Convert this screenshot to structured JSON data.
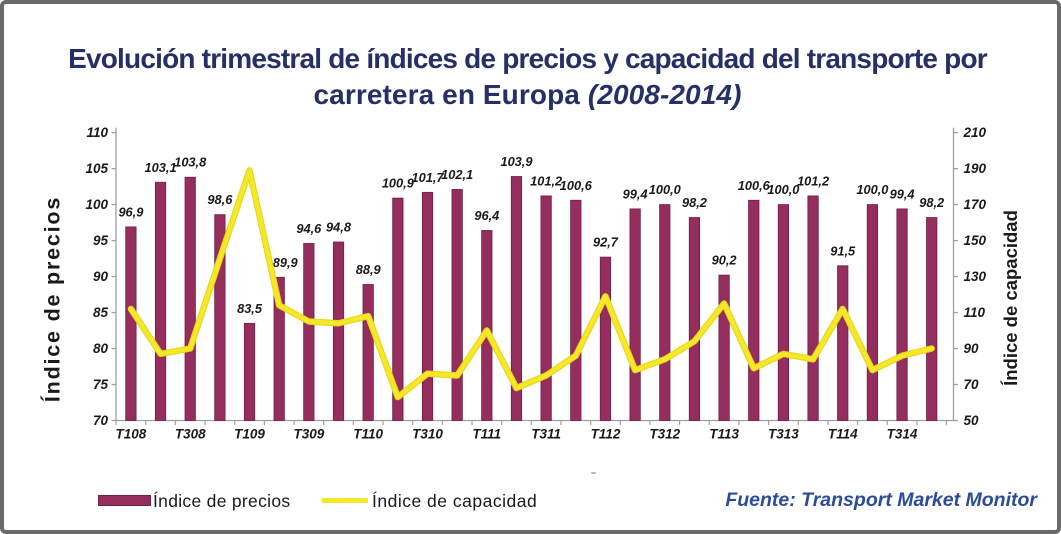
{
  "colors": {
    "title_blue": "#262f66",
    "source_blue": "#2b4b9b",
    "bar_fill": "#952d5d",
    "bar_edge": "#6e2146",
    "line_yellow": "#f5e827",
    "line_yellow_edge": "#e8d51f",
    "axis_gray": "#a0a0a0",
    "tick_text": "#1a1a1a"
  },
  "chart_data": {
    "type": "bar+line combo",
    "title_line1": "Evolución trimestral de índices de precios y capacidad del transporte por",
    "title_line2_normal": "carretera en Europa ",
    "title_line2_italic": "(2008-2014)",
    "x_tick_labels": [
      "T108",
      "T308",
      "T109",
      "T309",
      "T110",
      "T310",
      "T111",
      "T311",
      "T112",
      "T312",
      "T113",
      "T313",
      "T114",
      "T314"
    ],
    "left_axis": {
      "title": "Índice de precios",
      "min": 70,
      "max": 110,
      "step": 5,
      "ticks": [
        70,
        75,
        80,
        85,
        90,
        95,
        100,
        105,
        110
      ]
    },
    "right_axis": {
      "title": "Índice de capacidad",
      "min": 50,
      "max": 210,
      "step": 20,
      "ticks": [
        50,
        70,
        90,
        110,
        130,
        150,
        170,
        190,
        210
      ]
    },
    "series": [
      {
        "name": "Índice de precios",
        "type": "bar",
        "axis": "left",
        "values": [
          96.9,
          103.1,
          103.8,
          98.6,
          83.5,
          89.9,
          94.6,
          94.8,
          88.9,
          100.9,
          101.7,
          102.1,
          96.4,
          103.9,
          101.2,
          100.6,
          92.7,
          99.4,
          100.0,
          98.2,
          90.2,
          100.6,
          100.0,
          101.2,
          91.5,
          100.0,
          99.4,
          98.2
        ],
        "value_labels": [
          "96,9",
          "103,1",
          "103,8",
          "98,6",
          "83,5",
          "89,9",
          "94,6",
          "94,8",
          "88,9",
          "100,9",
          "101,7",
          "102,1",
          "96,4",
          "103,9",
          "101,2",
          "100,6",
          "92,7",
          "99,4",
          "100,0",
          "98,2",
          "90,2",
          "100,6",
          "100,0",
          "101,2",
          "91,5",
          "100,0",
          "99,4",
          "98,2"
        ]
      },
      {
        "name": "Índice de capacidad",
        "type": "line",
        "axis": "right",
        "values": [
          112,
          87,
          90,
          140,
          189,
          114,
          105,
          104,
          108,
          63,
          76,
          75,
          100,
          68,
          75,
          86,
          119,
          78,
          84,
          94,
          115,
          79,
          87,
          84,
          112,
          78,
          86,
          90
        ]
      }
    ],
    "legend": {
      "price_label": "Índice de precios",
      "capacity_label": "Índice de capacidad",
      "position": "bottom-left"
    },
    "source": "Fuente: Transport Market Monitor",
    "grid": false
  }
}
